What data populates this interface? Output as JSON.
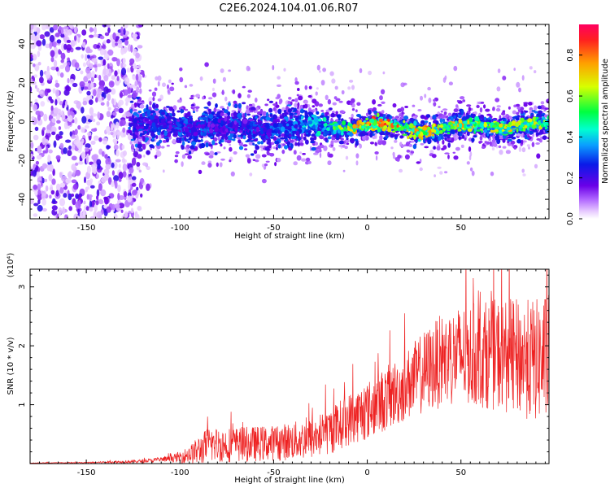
{
  "title": "C2E6.2024.104.01.06.R07",
  "chart_data": [
    {
      "type": "heatmap",
      "xlabel": "Height of straight line (km)",
      "ylabel": "Frequency (Hz)",
      "xlim": [
        -180,
        97
      ],
      "ylim": [
        -50,
        50
      ],
      "xticks": [
        -150,
        -100,
        -50,
        0,
        50
      ],
      "xtick_labels": [
        "-150",
        "-100",
        "-50",
        "0",
        "50"
      ],
      "yticks": [
        -40,
        -20,
        0,
        20,
        40
      ],
      "ytick_labels": [
        "-40",
        "-20",
        "0",
        "20",
        "40"
      ],
      "colorbar": {
        "label": "Normalized spectral amplitude",
        "range": [
          0,
          0.95
        ],
        "ticks": [
          0.0,
          0.2,
          0.4,
          0.6,
          0.8
        ],
        "tick_labels": [
          "0.0",
          "0.2",
          "0.4",
          "0.6",
          "0.8"
        ],
        "colors": [
          "#ffffff",
          "#e6c8ff",
          "#b066ff",
          "#6a00e8",
          "#0a1ae8",
          "#0aa0ff",
          "#00ffd0",
          "#00ff40",
          "#d8ff00",
          "#ffa000",
          "#ff2020",
          "#ff0060"
        ]
      },
      "ridge": {
        "description_points_x": [
          -125,
          -100,
          -75,
          -50,
          -25,
          0,
          25,
          50,
          75,
          97
        ],
        "center_hz": [
          -2,
          -2,
          -3,
          -3,
          -3,
          -2,
          -4,
          -3,
          -2,
          -2
        ],
        "amplitude": [
          0.3,
          0.32,
          0.3,
          0.32,
          0.45,
          0.85,
          0.8,
          0.75,
          0.7,
          0.65
        ]
      }
    },
    {
      "type": "line",
      "xlabel": "Height of straight line (km)",
      "ylabel": "SNR (10 * v/v)",
      "yscale_label": "(x10⁴)",
      "xlim": [
        -180,
        97
      ],
      "ylim": [
        0,
        3.3
      ],
      "xticks": [
        -150,
        -100,
        -50,
        0,
        50
      ],
      "xtick_labels": [
        "-150",
        "-100",
        "-50",
        "0",
        "50"
      ],
      "yticks": [
        1,
        2,
        3
      ],
      "ytick_labels": [
        "1",
        "2",
        "3"
      ],
      "series": [
        {
          "name": "SNR",
          "color": "#ee2222",
          "x": [
            -180,
            -150,
            -120,
            -105,
            -95,
            -90,
            -85,
            -70,
            -50,
            -30,
            -20,
            -10,
            0,
            10,
            20,
            30,
            40,
            50,
            60,
            70,
            80,
            90,
            97
          ],
          "mean": [
            0.01,
            0.015,
            0.04,
            0.08,
            0.15,
            0.22,
            0.32,
            0.32,
            0.35,
            0.42,
            0.55,
            0.75,
            0.9,
            1.1,
            1.3,
            1.55,
            1.75,
            1.85,
            1.85,
            1.85,
            1.8,
            1.75,
            1.8
          ],
          "spread": [
            0.005,
            0.01,
            0.03,
            0.05,
            0.15,
            0.25,
            0.3,
            0.3,
            0.3,
            0.35,
            0.4,
            0.45,
            0.5,
            0.55,
            0.6,
            0.7,
            0.8,
            0.85,
            0.9,
            0.95,
            1.0,
            1.05,
            1.1
          ]
        }
      ]
    }
  ]
}
